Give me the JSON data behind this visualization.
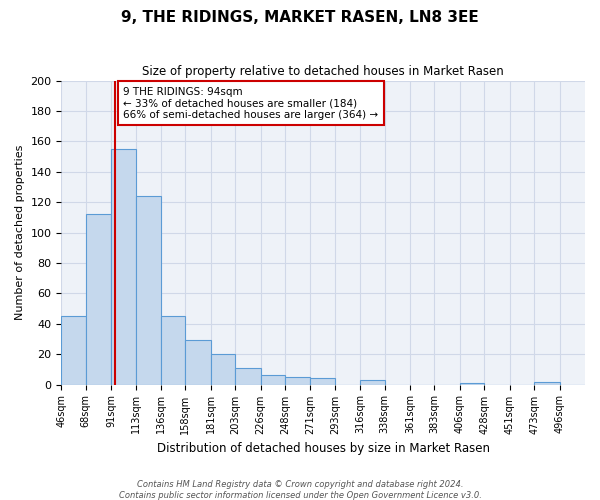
{
  "title": "9, THE RIDINGS, MARKET RASEN, LN8 3EE",
  "subtitle": "Size of property relative to detached houses in Market Rasen",
  "xlabel": "Distribution of detached houses by size in Market Rasen",
  "ylabel": "Number of detached properties",
  "bin_labels": [
    "46sqm",
    "68sqm",
    "91sqm",
    "113sqm",
    "136sqm",
    "158sqm",
    "181sqm",
    "203sqm",
    "226sqm",
    "248sqm",
    "271sqm",
    "293sqm",
    "316sqm",
    "338sqm",
    "361sqm",
    "383sqm",
    "406sqm",
    "428sqm",
    "451sqm",
    "473sqm",
    "496sqm"
  ],
  "bin_edges": [
    46,
    68,
    91,
    113,
    136,
    158,
    181,
    203,
    226,
    248,
    271,
    293,
    316,
    338,
    361,
    383,
    406,
    428,
    451,
    473,
    496,
    519
  ],
  "bar_heights": [
    45,
    112,
    155,
    124,
    45,
    29,
    20,
    11,
    6,
    5,
    4,
    0,
    3,
    0,
    0,
    0,
    1,
    0,
    0,
    2,
    0
  ],
  "bar_fill_color": "#c5d8ed",
  "bar_edge_color": "#5b9bd5",
  "property_line_x": 94,
  "annotation_title": "9 THE RIDINGS: 94sqm",
  "annotation_line1": "← 33% of detached houses are smaller (184)",
  "annotation_line2": "66% of semi-detached houses are larger (364) →",
  "annotation_box_color": "#ffffff",
  "annotation_box_edge": "#cc0000",
  "line_color": "#cc0000",
  "ylim": [
    0,
    200
  ],
  "yticks": [
    0,
    20,
    40,
    60,
    80,
    100,
    120,
    140,
    160,
    180,
    200
  ],
  "grid_color": "#d0d8e8",
  "bg_color": "#eef2f8",
  "footer1": "Contains HM Land Registry data © Crown copyright and database right 2024.",
  "footer2": "Contains public sector information licensed under the Open Government Licence v3.0."
}
